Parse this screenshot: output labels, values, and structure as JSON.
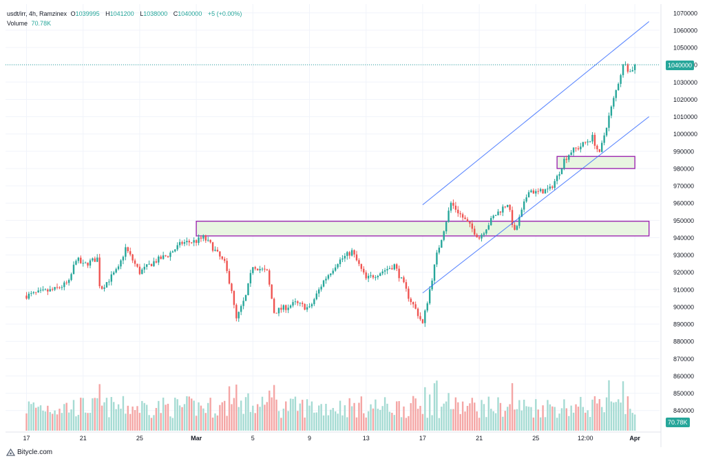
{
  "legend": {
    "symbol": "usdt/irr, 4h, Ramzinex",
    "open_label": "O",
    "open": "1039995",
    "high_label": "H",
    "high": "1041200",
    "low_label": "L",
    "low": "1038000",
    "close_label": "C",
    "close": "1040000",
    "change": "+5 (+0.00%)",
    "volume_label": "Volume",
    "volume": "70.78K"
  },
  "footer": {
    "brand": "Bitycle.com"
  },
  "colors": {
    "up": "#26a69a",
    "down": "#ef5350",
    "vol_up": "#a5dbd3",
    "vol_down": "#f4a5a4",
    "channel": "#2962ff",
    "zone_fill": "#e8f5e1",
    "zone_border": "#9c27b0",
    "grid": "#f0f3fa"
  },
  "price_badge": "1040000",
  "volume_badge": "70.78K",
  "chart_data": {
    "type": "candlestick",
    "symbol": "usdt/irr",
    "interval": "4h",
    "exchange": "Ramzinex",
    "ylim": [
      835000,
      1072000
    ],
    "y_ticks": [
      840000,
      850000,
      860000,
      870000,
      880000,
      890000,
      900000,
      910000,
      920000,
      930000,
      940000,
      950000,
      960000,
      970000,
      980000,
      990000,
      1000000,
      1010000,
      1020000,
      1030000,
      1040000,
      1050000,
      1060000,
      1070000
    ],
    "x_ticks": [
      {
        "label": "17",
        "day": 0
      },
      {
        "label": "21",
        "day": 4
      },
      {
        "label": "25",
        "day": 8
      },
      {
        "label": "Mar",
        "day": 12
      },
      {
        "label": "5",
        "day": 16
      },
      {
        "label": "9",
        "day": 20
      },
      {
        "label": "13",
        "day": 24
      },
      {
        "label": "17",
        "day": 28
      },
      {
        "label": "21",
        "day": 32
      },
      {
        "label": "25",
        "day": 36
      },
      {
        "label": "12:00",
        "day": 39.5
      },
      {
        "label": "Apr",
        "day": 43
      }
    ],
    "bars_per_day": 6,
    "path_points": [
      [
        0,
        906500
      ],
      [
        2,
        910000
      ],
      [
        3,
        914000
      ],
      [
        3.5,
        928000
      ],
      [
        4,
        924000
      ],
      [
        5,
        928000
      ],
      [
        5.2,
        910000
      ],
      [
        6.5,
        922000
      ],
      [
        7,
        934000
      ],
      [
        8,
        920000
      ],
      [
        9,
        926000
      ],
      [
        10,
        930000
      ],
      [
        11,
        937000
      ],
      [
        12,
        938000
      ],
      [
        12.5,
        940000
      ],
      [
        13,
        936000
      ],
      [
        14,
        925000
      ],
      [
        14.5,
        910000
      ],
      [
        14.8,
        892000
      ],
      [
        15.5,
        906000
      ],
      [
        16,
        924000
      ],
      [
        17,
        920000
      ],
      [
        17.5,
        897000
      ],
      [
        19,
        902000
      ],
      [
        20,
        899000
      ],
      [
        21,
        915000
      ],
      [
        22,
        926000
      ],
      [
        23,
        932000
      ],
      [
        24,
        916000
      ],
      [
        25,
        920000
      ],
      [
        26,
        924000
      ],
      [
        26.7,
        912000
      ],
      [
        27,
        906000
      ],
      [
        27.6,
        897000
      ],
      [
        28,
        890000
      ],
      [
        28.5,
        910000
      ],
      [
        29,
        930000
      ],
      [
        29.5,
        945000
      ],
      [
        30,
        960000
      ],
      [
        30.5,
        955000
      ],
      [
        31.5,
        945000
      ],
      [
        32,
        940000
      ],
      [
        33,
        952000
      ],
      [
        34,
        960000
      ],
      [
        34.5,
        943000
      ],
      [
        35,
        955000
      ],
      [
        35.5,
        968000
      ],
      [
        36,
        966000
      ],
      [
        37,
        968000
      ],
      [
        37.5,
        975000
      ],
      [
        38,
        985000
      ],
      [
        38.5,
        990000
      ],
      [
        39,
        992000
      ],
      [
        40,
        998000
      ],
      [
        40.5,
        988000
      ],
      [
        41,
        1005000
      ],
      [
        41.5,
        1020000
      ],
      [
        42,
        1035000
      ],
      [
        42.3,
        1043000
      ],
      [
        42.6,
        1035000
      ],
      [
        43,
        1040000
      ]
    ],
    "volume_range": [
      0,
      120
    ],
    "annotations": {
      "channel_upper": [
        [
          28,
          959000
        ],
        [
          44,
          1065000
        ]
      ],
      "channel_lower": [
        [
          28,
          908000
        ],
        [
          44,
          1010000
        ]
      ],
      "zones": [
        {
          "from_day": 12,
          "to_day": 44,
          "low": 941000,
          "high": 949500
        },
        {
          "from_day": 37.5,
          "to_day": 43,
          "low": 980000,
          "high": 987000
        }
      ],
      "last_price_line": 1040000
    }
  }
}
